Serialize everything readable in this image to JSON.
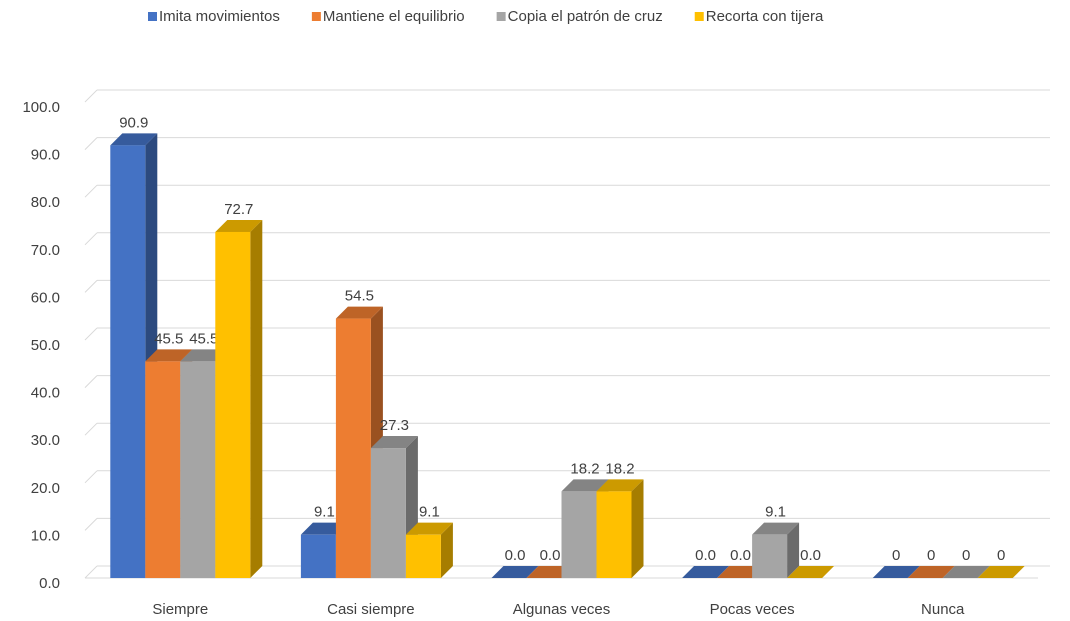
{
  "chart_data": {
    "type": "bar3d",
    "categories": [
      "Siempre",
      "Casi siempre",
      "Algunas veces",
      "Pocas veces",
      "Nunca"
    ],
    "series": [
      {
        "name": "Imita movimientos",
        "color": "#4472c4",
        "values": [
          90.9,
          9.1,
          0,
          0,
          0
        ],
        "value_labels": [
          "90.9",
          "9.1",
          "0.0",
          "0.0",
          "0"
        ]
      },
      {
        "name": "Mantiene el equilibrio",
        "color": "#ed7d31",
        "values": [
          45.5,
          54.5,
          0,
          0,
          0
        ],
        "value_labels": [
          "45.5",
          "54.5",
          "0.0",
          "0.0",
          "0"
        ]
      },
      {
        "name": "Copia el patrón de cruz",
        "color": "#a5a5a5",
        "values": [
          45.5,
          27.3,
          18.2,
          9.1,
          0
        ],
        "value_labels": [
          "45.5",
          "27.3",
          "18.2",
          "9.1",
          "0"
        ]
      },
      {
        "name": "Recorta con tijera",
        "color": "#ffc000",
        "values": [
          72.7,
          9.1,
          18.2,
          0,
          0
        ],
        "value_labels": [
          "72.7",
          "9.1",
          "18.2",
          "0.0",
          "0"
        ]
      }
    ],
    "ylim": [
      0,
      100
    ],
    "yticks": [
      {
        "value": 0,
        "label": "0.0"
      },
      {
        "value": 10,
        "label": "10.0"
      },
      {
        "value": 20,
        "label": "20.0"
      },
      {
        "value": 30,
        "label": "30.0"
      },
      {
        "value": 40,
        "label": "40.0"
      },
      {
        "value": 50,
        "label": "50.0"
      },
      {
        "value": 60,
        "label": "60.0"
      },
      {
        "value": 70,
        "label": "70.0"
      },
      {
        "value": 80,
        "label": "80.0"
      },
      {
        "value": 90,
        "label": "90.0"
      },
      {
        "value": 100,
        "label": "100.0"
      }
    ],
    "grid": true,
    "legend": "top"
  }
}
